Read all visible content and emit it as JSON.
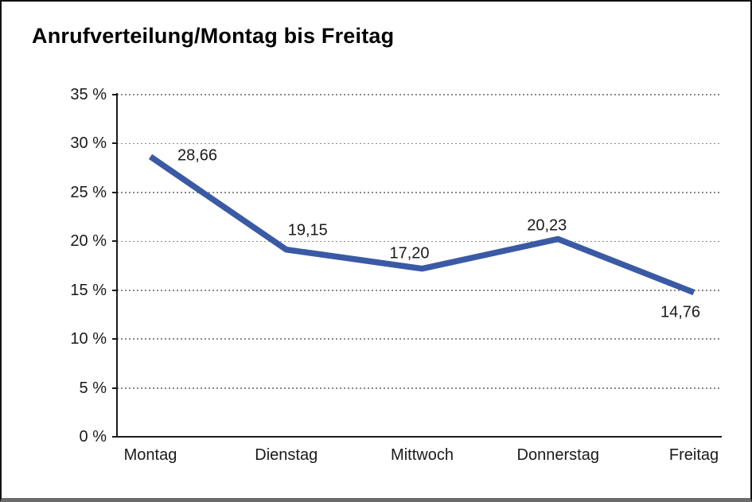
{
  "window": {
    "title": "Anrufverteilung/Montag bis Freitag"
  },
  "chart_data": {
    "type": "line",
    "title": "Anrufverteilung/Montag bis Freitag",
    "categories": [
      "Montag",
      "Dienstag",
      "Mittwoch",
      "Donnerstag",
      "Freitag"
    ],
    "values": [
      28.66,
      19.15,
      17.2,
      20.23,
      14.76
    ],
    "value_labels": [
      "28,66",
      "19,15",
      "17,20",
      "20,23",
      "14,76"
    ],
    "xlabel": "",
    "ylabel": "",
    "ylim": [
      0,
      35
    ],
    "ytick_step": 5,
    "ytick_labels": [
      "0 %",
      "5 %",
      "10 %",
      "15 %",
      "20 %",
      "25 %",
      "30 %",
      "35 %"
    ],
    "grid": "horizontal-dotted",
    "legend": "none",
    "colors": {
      "line": "#3A5AA5",
      "axis": "#1a1a1a",
      "grid": "#8a8a8a",
      "text": "#1a1a1a"
    }
  }
}
